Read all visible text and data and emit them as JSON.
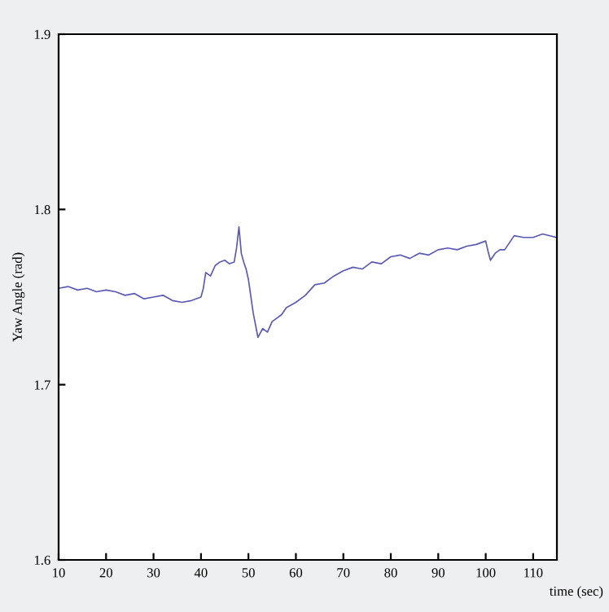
{
  "chart_data": {
    "type": "line",
    "xlabel": "time (sec)",
    "ylabel": "Yaw Angle (rad)",
    "x": [
      10,
      12,
      14,
      16,
      18,
      20,
      22,
      24,
      26,
      28,
      30,
      32,
      34,
      36,
      38,
      40,
      40.5,
      41,
      42,
      43,
      44,
      45,
      46,
      47,
      47.5,
      48,
      48.5,
      49,
      49.5,
      50,
      51,
      52,
      53,
      54,
      55,
      56,
      57,
      58,
      60,
      62,
      64,
      66,
      68,
      70,
      72,
      74,
      76,
      78,
      80,
      82,
      84,
      86,
      88,
      90,
      92,
      94,
      96,
      98,
      100,
      100.5,
      101,
      102,
      103,
      104,
      106,
      108,
      110,
      112,
      115
    ],
    "series": [
      {
        "color": "#5a5ab4",
        "values": [
          1.755,
          1.756,
          1.754,
          1.755,
          1.753,
          1.754,
          1.753,
          1.751,
          1.752,
          1.749,
          1.75,
          1.751,
          1.748,
          1.747,
          1.748,
          1.75,
          1.755,
          1.764,
          1.762,
          1.768,
          1.77,
          1.771,
          1.769,
          1.77,
          1.778,
          1.79,
          1.775,
          1.77,
          1.766,
          1.76,
          1.741,
          1.727,
          1.732,
          1.73,
          1.736,
          1.738,
          1.74,
          1.744,
          1.747,
          1.751,
          1.757,
          1.758,
          1.762,
          1.765,
          1.767,
          1.766,
          1.77,
          1.769,
          1.773,
          1.774,
          1.772,
          1.775,
          1.774,
          1.777,
          1.778,
          1.777,
          1.779,
          1.78,
          1.782,
          1.776,
          1.771,
          1.775,
          1.777,
          1.777,
          1.785,
          1.784,
          1.784,
          1.786,
          1.784
        ]
      }
    ],
    "xlim": [
      10,
      115
    ],
    "ylim": [
      1.6,
      1.9
    ],
    "xticks": [
      10,
      20,
      30,
      40,
      50,
      60,
      70,
      80,
      90,
      100,
      110
    ],
    "yticks": [
      1.6,
      1.7,
      1.8,
      1.9
    ],
    "grid": false,
    "legend": false
  }
}
